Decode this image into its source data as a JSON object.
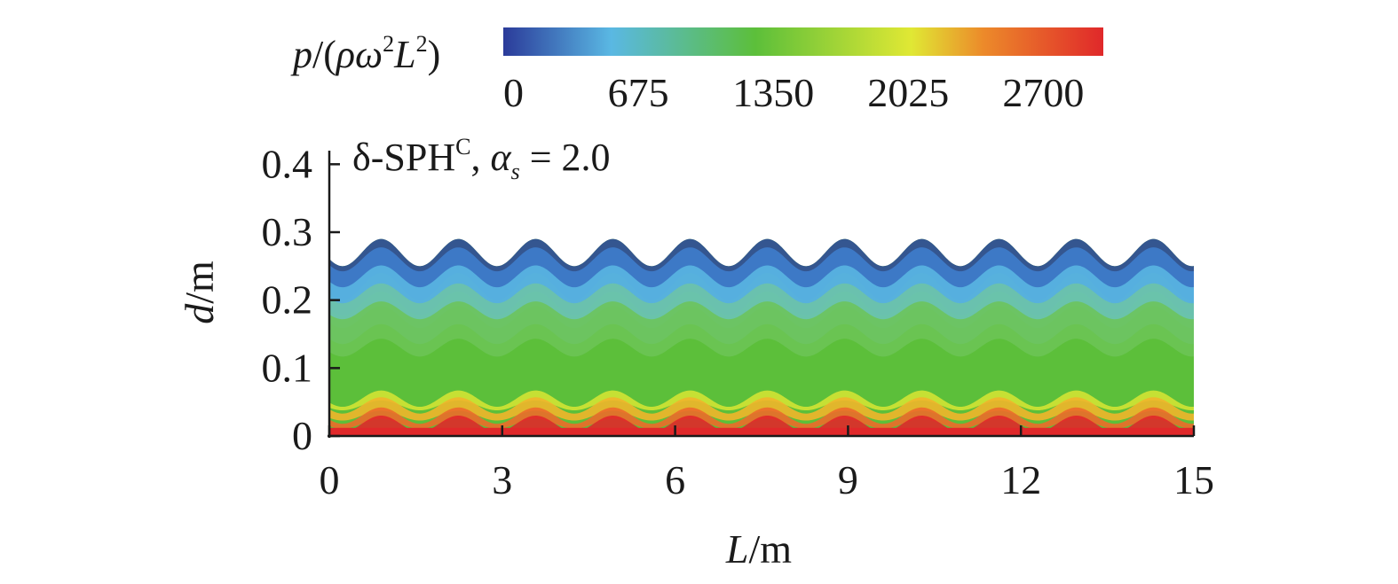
{
  "chart_data": {
    "type": "heatmap",
    "title": "δ-SPH^C, α_s = 2.0",
    "title_parts": {
      "method": "δ-SPH",
      "method_sup": "C",
      "sep": ", ",
      "alpha": "α",
      "alpha_sub": "s",
      "equals": " = 2.0"
    },
    "xlabel": "L/m",
    "xlabel_parts": {
      "var": "L",
      "unit": "/m"
    },
    "ylabel": "d/m",
    "ylabel_parts": {
      "var": "d",
      "unit": "/m"
    },
    "xlim": [
      0,
      15
    ],
    "ylim": [
      0,
      0.42
    ],
    "x_ticks": [
      0,
      3,
      6,
      9,
      12,
      15
    ],
    "x_tick_labels": [
      "0",
      "3",
      "6",
      "9",
      "12",
      "15"
    ],
    "y_ticks": [
      0,
      0.1,
      0.2,
      0.3,
      0.4
    ],
    "y_tick_labels": [
      "0",
      "0.1",
      "0.2",
      "0.3",
      "0.4"
    ],
    "colorbar": {
      "label": "p/(ρω²L²)",
      "label_parts": {
        "p": "p",
        "open": "/(",
        "rho": "ρ",
        "omega": "ω",
        "sup1": "2",
        "L": "L",
        "sup2": "2",
        "close": ")"
      },
      "range": [
        0,
        3000
      ],
      "ticks": [
        0,
        675,
        1350,
        2025,
        2700
      ],
      "tick_labels": [
        "0",
        "675",
        "1350",
        "2025",
        "2700"
      ],
      "colormap": [
        "#2b3b9a",
        "#5ab8e3",
        "#5cbf3a",
        "#e0e834",
        "#ec8a2a",
        "#e0282a"
      ]
    },
    "free_surface": {
      "mean_depth": 0.27,
      "amplitude": 0.02,
      "wave_crests_x": [
        0.9,
        2.25,
        3.6,
        4.95,
        6.3,
        7.6,
        8.95,
        10.3,
        11.6,
        12.95,
        14.3
      ],
      "wave_period": 1.34
    },
    "pressure_field": "hydrostatic: pressure increases from 0 at the free surface to about 3000 at the bottom (d = 0)",
    "grid": false,
    "legend": "none"
  }
}
